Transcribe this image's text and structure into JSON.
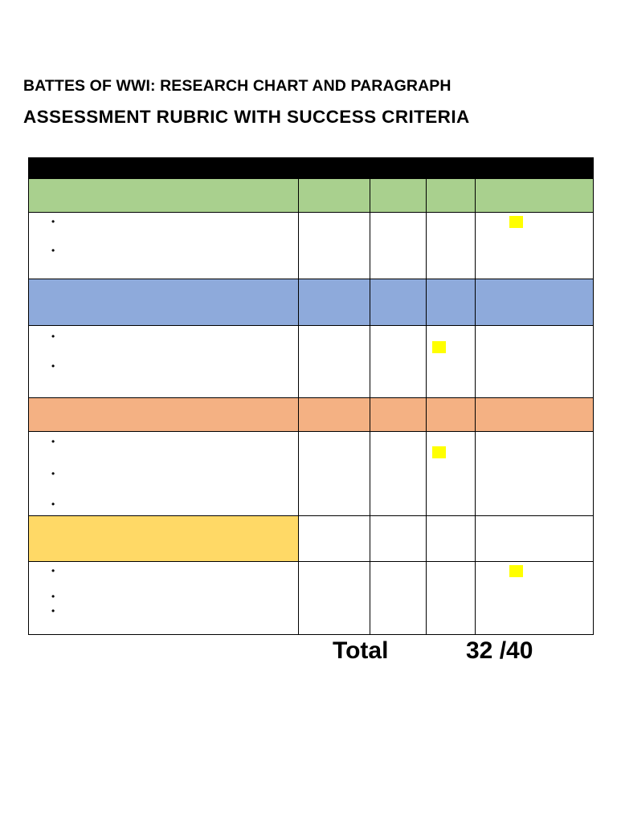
{
  "document": {
    "title_line1": "BATTES OF WWI: RESEARCH CHART AND PARAGRAPH",
    "title_line2": "ASSESSMENT RUBRIC WITH SUCCESS CRITERIA"
  },
  "colors": {
    "header": "#000000",
    "section1": "#a9d08e",
    "section2": "#8eaadb",
    "section3": "#f4b183",
    "section4": "#ffd966",
    "highlight": "#ffff00"
  },
  "rubric": {
    "bullet_glyph": "•",
    "sections": [
      {
        "color": "section1",
        "bullet_count": 2,
        "highlighted_column": 4
      },
      {
        "color": "section2",
        "bullet_count": 2,
        "highlighted_column": 3
      },
      {
        "color": "section3",
        "bullet_count": 3,
        "highlighted_column": 3
      },
      {
        "color": "section4",
        "bullet_count": 3,
        "highlighted_column": 4
      }
    ]
  },
  "total": {
    "label": "Total",
    "score": "32 /40"
  }
}
